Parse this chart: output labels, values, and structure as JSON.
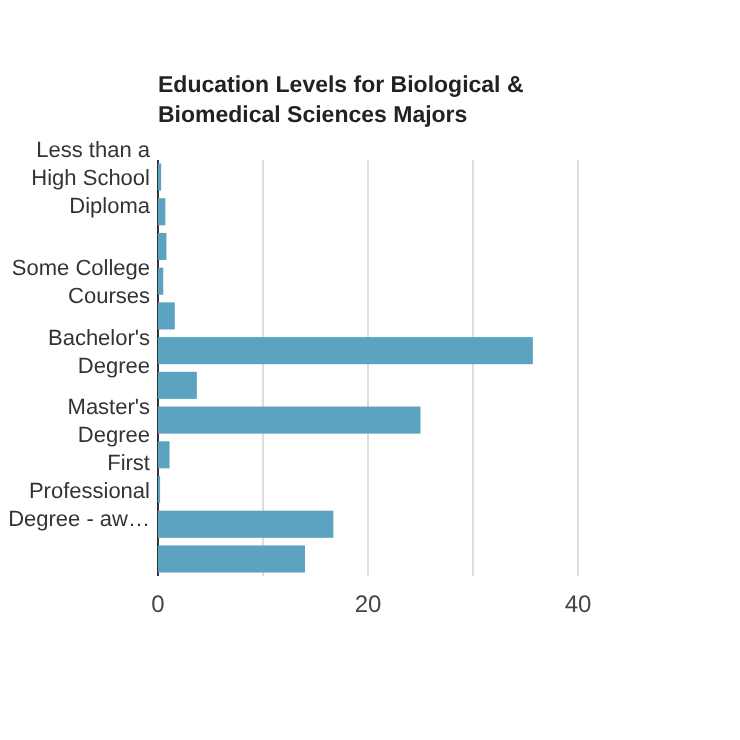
{
  "chart_data": {
    "type": "bar",
    "orientation": "horizontal",
    "title": "Education Levels for Biological & Biomedical Sciences Majors",
    "categories": [
      "Less than a High School Diploma",
      null,
      null,
      "Some College Courses",
      null,
      "Bachelor's Degree",
      null,
      "Master's Degree",
      null,
      "First Professional Degree - aw…",
      null,
      null
    ],
    "values": [
      0.3,
      0.7,
      0.8,
      0.5,
      1.6,
      35.7,
      3.7,
      25.0,
      1.1,
      0.2,
      16.7,
      14.0
    ],
    "color": "#5ba3c0",
    "xlim": [
      0,
      40
    ],
    "xticks": [
      0,
      {
        "value": 10,
        "label": null
      },
      20,
      {
        "value": 30,
        "label": null
      },
      40
    ],
    "grid": "x"
  }
}
